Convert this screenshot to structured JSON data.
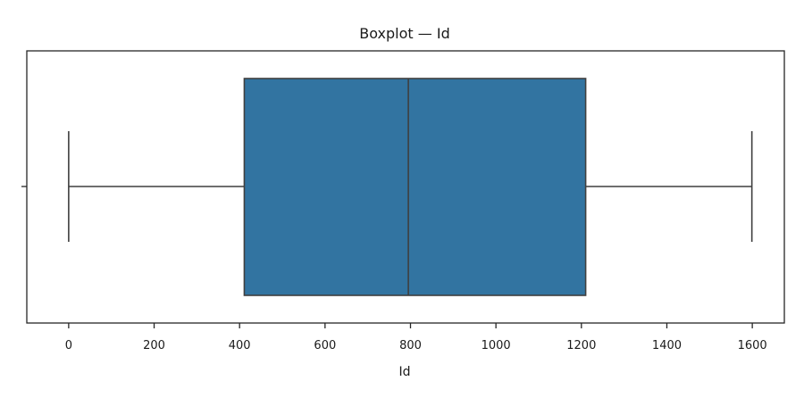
{
  "chart_data": {
    "type": "boxplot",
    "title": "Boxplot — Id",
    "xlabel": "Id",
    "ylabel": "",
    "orientation": "horizontal",
    "xlim": [
      -98,
      1675
    ],
    "xticks": [
      0,
      200,
      400,
      600,
      800,
      1000,
      1200,
      1400,
      1600
    ],
    "xtick_labels": [
      "0",
      "200",
      "400",
      "600",
      "800",
      "1000",
      "1200",
      "1400",
      "1600"
    ],
    "grid": false,
    "legend": "none",
    "box": {
      "min": 0,
      "q1": 411,
      "median": 795,
      "q3": 1210,
      "max": 1599,
      "fill_color": "#3274a1",
      "line_color": "#3f3f3f"
    }
  }
}
